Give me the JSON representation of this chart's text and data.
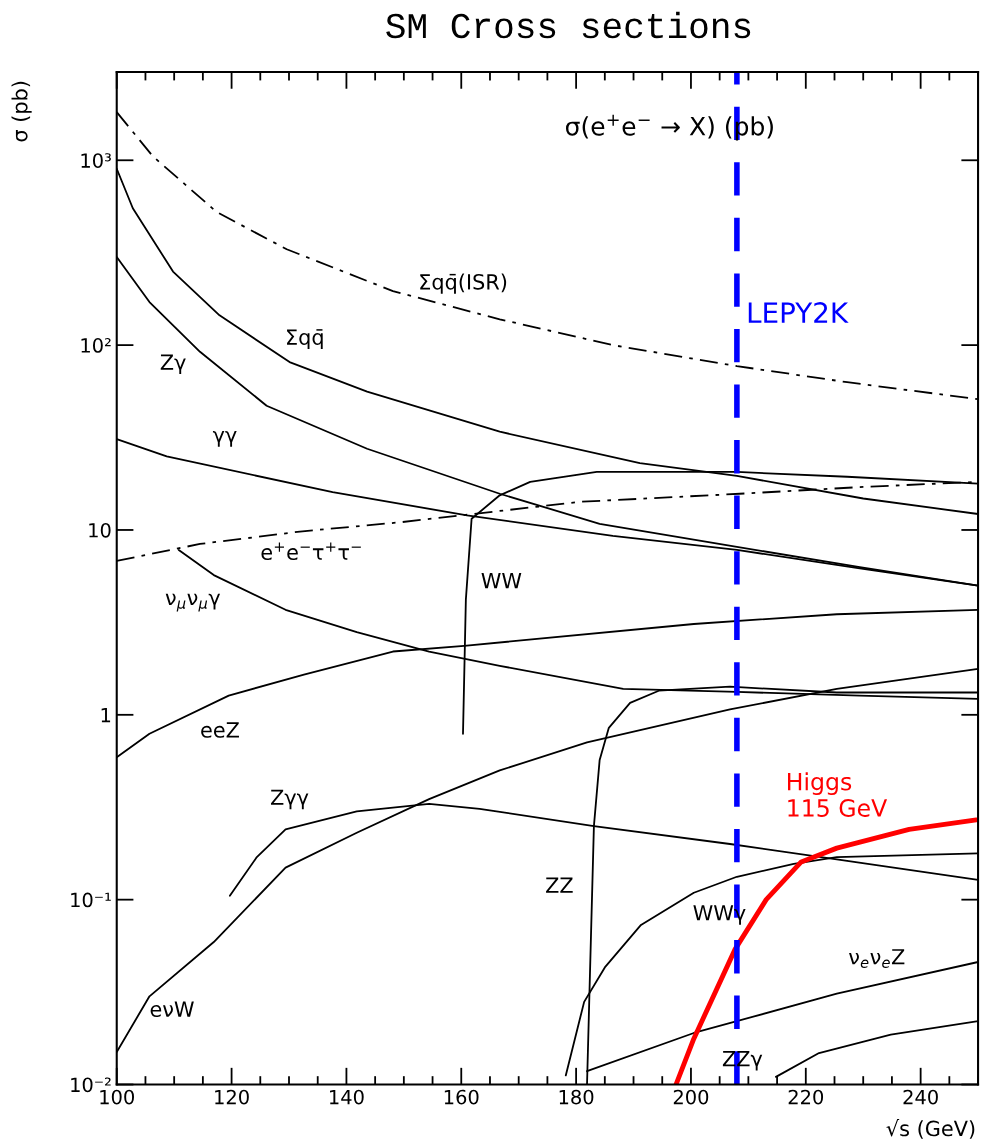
{
  "chart_data": {
    "type": "line",
    "title": "SM Cross sections",
    "xlabel": "√s (GeV)",
    "ylabel": "σ (pb)",
    "log": "y",
    "xlim": [
      100,
      250
    ],
    "ylim": [
      0.01,
      3000
    ],
    "xticks": [
      100,
      120,
      140,
      160,
      180,
      200,
      220,
      240
    ],
    "yticks": [
      {
        "value": 0.01,
        "label": "10⁻²"
      },
      {
        "value": 0.1,
        "label": "10⁻¹"
      },
      1,
      10,
      {
        "value": 100,
        "label": "10²"
      },
      {
        "value": 1000,
        "label": "10³"
      }
    ],
    "grid": false,
    "legend": false,
    "marker": "none",
    "annotations": [
      "σ(e$^{+}$e$^{−}$ → X) (pb)"
    ],
    "ref_lines": [
      {
        "axis": "x",
        "value": 208,
        "label": "LEPY2K",
        "color": "#0000ff",
        "line_style": "dashed"
      }
    ],
    "series": [
      {
        "name": "Σqq̄(ISR)",
        "color": "#000000",
        "line_style": "dashdot",
        "x": [
          100,
          106.3,
          117.4,
          129.6,
          148.1,
          166.7,
          186.4,
          208,
          227.2,
          250
        ],
        "values": [
          1820,
          1050,
          525,
          330,
          196,
          138,
          100,
          77,
          63,
          51
        ]
      },
      {
        "name": "Σqq̄",
        "color": "#000000",
        "line_style": "solid",
        "x": [
          100,
          102.8,
          109.8,
          117.9,
          130.1,
          143.6,
          166.7,
          191.1,
          208,
          230,
          250
        ],
        "values": [
          900,
          550,
          250,
          145,
          81,
          56,
          34,
          23,
          19.6,
          14.8,
          12.2
        ]
      },
      {
        "name": "Zγ",
        "color": "#000000",
        "line_style": "solid",
        "x": [
          100,
          105.7,
          114.5,
          126.1,
          143.6,
          166.7,
          184.1,
          208,
          229.4,
          250
        ],
        "values": [
          300,
          171,
          92,
          47,
          27.5,
          15.7,
          10.8,
          8.1,
          6.3,
          5.0
        ]
      },
      {
        "name": "γγ",
        "color": "#000000",
        "line_style": "solid",
        "x": [
          100,
          108.7,
          137.6,
          161,
          186.4,
          208,
          229.4,
          250
        ],
        "values": [
          31,
          25,
          16,
          12,
          9.3,
          7.8,
          6.2,
          5.0
        ]
      },
      {
        "name": "e$^{+}$e$^{−}$τ$^{+}$τ$^{−}$",
        "color": "#000000",
        "line_style": "dashdot",
        "x": [
          100,
          114.5,
          131.9,
          149.3,
          180.7,
          208.5,
          230,
          250
        ],
        "values": [
          6.8,
          8.4,
          9.8,
          11,
          14.2,
          15.7,
          17.1,
          18.2
        ]
      },
      {
        "name": "WW",
        "color": "#000000",
        "line_style": "solid",
        "x": [
          160.3,
          160.8,
          161.8,
          166.7,
          172,
          183.6,
          208,
          227.2,
          250
        ],
        "values": [
          0.79,
          4.2,
          11.5,
          15.4,
          18.2,
          20.6,
          20.6,
          19.4,
          17.8
        ]
      },
      {
        "name": "ν$_{μ}$ν$_{μ}$γ",
        "color": "#000000",
        "line_style": "solid",
        "x": [
          110.8,
          116.9,
          129.4,
          141.8,
          154.4,
          166.7,
          188.2,
          208,
          229.4,
          250
        ],
        "values": [
          7.8,
          5.7,
          3.7,
          2.8,
          2.2,
          1.84,
          1.38,
          1.33,
          1.27,
          1.22
        ]
      },
      {
        "name": "eeZ",
        "color": "#000000",
        "line_style": "solid",
        "x": [
          100,
          105.7,
          119.5,
          132.6,
          148.1,
          160.5,
          200.5,
          225.4,
          250
        ],
        "values": [
          0.59,
          0.79,
          1.27,
          1.65,
          2.2,
          2.36,
          3.1,
          3.5,
          3.7
        ]
      },
      {
        "name": "Zγγ",
        "color": "#000000",
        "line_style": "solid",
        "x": [
          119.7,
          124.4,
          129.4,
          141.8,
          154.4,
          163.2,
          183.1,
          206.8,
          225.4,
          250
        ],
        "values": [
          0.105,
          0.17,
          0.24,
          0.3,
          0.33,
          0.31,
          0.25,
          0.2,
          0.165,
          0.128
        ]
      },
      {
        "name": "ZZ",
        "color": "#000000",
        "line_style": "solid",
        "x": [
          181.9,
          183.1,
          184.1,
          185.7,
          189.4,
          194.4,
          206.8,
          225.4,
          250
        ],
        "values": [
          0.01,
          0.25,
          0.57,
          0.85,
          1.16,
          1.35,
          1.42,
          1.32,
          1.32
        ]
      },
      {
        "name": "WWγ",
        "color": "#000000",
        "line_style": "solid",
        "x": [
          178.2,
          181.4,
          185,
          191.3,
          200.5,
          208,
          217.9,
          225.4,
          250
        ],
        "values": [
          0.0112,
          0.028,
          0.043,
          0.073,
          0.109,
          0.133,
          0.156,
          0.17,
          0.178
        ]
      },
      {
        "name": "ν$_{e}$ν$_{e}$Z",
        "color": "#000000",
        "line_style": "solid",
        "x": [
          181.9,
          200.5,
          225.4,
          250
        ],
        "values": [
          0.0118,
          0.019,
          0.031,
          0.046
        ]
      },
      {
        "name": "ZZγ",
        "color": "#000000",
        "line_style": "solid",
        "x": [
          214.8,
          222.3,
          234.8,
          250
        ],
        "values": [
          0.011,
          0.0148,
          0.0186,
          0.022
        ]
      },
      {
        "name": "eνW",
        "color": "#000000",
        "line_style": "solid",
        "x": [
          100,
          105.7,
          116.9,
          129.4,
          141.8,
          154.4,
          166.7,
          181.9,
          206.8,
          225.4,
          250
        ],
        "values": [
          0.015,
          0.03,
          0.059,
          0.149,
          0.23,
          0.35,
          0.5,
          0.71,
          1.07,
          1.38,
          1.77
        ]
      },
      {
        "name": "Higgs\n115 GeV",
        "color": "#ff0000",
        "line_style": "solid",
        "x": [
          197.4,
          200.5,
          207.7,
          213.1,
          219.2,
          225.4,
          238,
          249.7
        ],
        "values": [
          0.01,
          0.0177,
          0.054,
          0.1,
          0.16,
          0.19,
          0.24,
          0.27
        ]
      }
    ]
  }
}
